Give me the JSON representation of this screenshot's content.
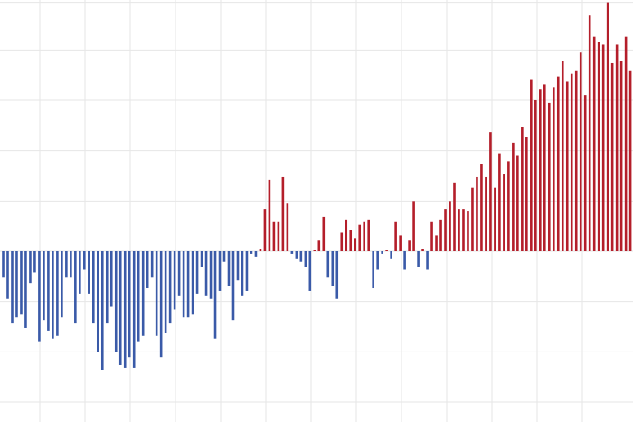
{
  "colors": {
    "positive": "#b41e2a",
    "negative": "#3a5aa8",
    "grid": "#e6e6e6",
    "background": "#ffffff"
  },
  "chart_data": {
    "type": "bar",
    "title": "",
    "xlabel": "",
    "ylabel": "",
    "grid": true,
    "legend": "none",
    "tick_labels_visible": false,
    "ylim": [
      -0.7,
      0.87
    ],
    "x_range": [
      0,
      140
    ],
    "x": [
      1,
      2,
      3,
      4,
      5,
      6,
      7,
      8,
      9,
      10,
      11,
      12,
      13,
      14,
      15,
      16,
      17,
      18,
      19,
      20,
      21,
      22,
      23,
      24,
      25,
      26,
      27,
      28,
      29,
      30,
      31,
      32,
      33,
      34,
      35,
      36,
      37,
      38,
      39,
      40,
      41,
      42,
      43,
      44,
      45,
      46,
      47,
      48,
      49,
      50,
      51,
      52,
      53,
      54,
      55,
      56,
      57,
      58,
      59,
      60,
      61,
      62,
      63,
      64,
      65,
      66,
      67,
      68,
      69,
      70,
      71,
      72,
      73,
      74,
      75,
      76,
      77,
      78,
      79,
      80,
      81,
      82,
      83,
      84,
      85,
      86,
      87,
      88,
      89,
      90,
      91,
      92,
      93,
      94,
      95,
      96,
      97,
      98,
      99,
      100,
      101,
      102,
      103,
      104,
      105,
      106,
      107,
      108,
      109,
      110,
      111,
      112,
      113,
      114,
      115,
      116,
      117,
      118,
      119,
      120,
      121,
      122,
      123,
      124,
      125,
      126,
      127,
      128,
      129,
      130,
      131,
      132,
      133,
      134,
      135,
      136,
      137,
      138,
      139,
      140
    ],
    "values": [
      -0.1,
      -0.18,
      -0.27,
      -0.25,
      -0.24,
      -0.29,
      -0.12,
      -0.08,
      -0.34,
      -0.26,
      -0.3,
      -0.33,
      -0.32,
      -0.25,
      -0.1,
      -0.1,
      -0.27,
      -0.16,
      -0.07,
      -0.16,
      -0.27,
      -0.38,
      -0.45,
      -0.27,
      -0.21,
      -0.38,
      -0.43,
      -0.44,
      -0.4,
      -0.44,
      -0.34,
      -0.32,
      -0.14,
      -0.1,
      -0.32,
      -0.4,
      -0.31,
      -0.27,
      -0.22,
      -0.17,
      -0.25,
      -0.25,
      -0.24,
      -0.16,
      -0.06,
      -0.17,
      -0.18,
      -0.33,
      -0.15,
      -0.04,
      -0.13,
      -0.26,
      -0.11,
      -0.17,
      -0.15,
      -0.01,
      -0.02,
      0.01,
      0.16,
      0.27,
      0.11,
      0.11,
      0.28,
      0.18,
      -0.01,
      -0.03,
      -0.04,
      -0.06,
      -0.15,
      0.0,
      0.04,
      0.13,
      -0.1,
      -0.13,
      -0.18,
      0.07,
      0.12,
      0.08,
      0.05,
      0.1,
      0.11,
      0.12,
      -0.14,
      -0.07,
      -0.01,
      0.0,
      -0.03,
      0.11,
      0.06,
      -0.07,
      0.04,
      0.19,
      -0.06,
      0.01,
      -0.07,
      0.11,
      0.06,
      0.12,
      0.16,
      0.19,
      0.26,
      0.16,
      0.16,
      0.15,
      0.24,
      0.28,
      0.33,
      0.28,
      0.45,
      0.24,
      0.37,
      0.29,
      0.34,
      0.41,
      0.36,
      0.47,
      0.43,
      0.65,
      0.57,
      0.61,
      0.63,
      0.56,
      0.62,
      0.66,
      0.72,
      0.64,
      0.67,
      0.68,
      0.75,
      0.59,
      0.89,
      0.81,
      0.79,
      0.78,
      0.94,
      0.71,
      0.78,
      0.72,
      0.81,
      0.68
    ]
  }
}
